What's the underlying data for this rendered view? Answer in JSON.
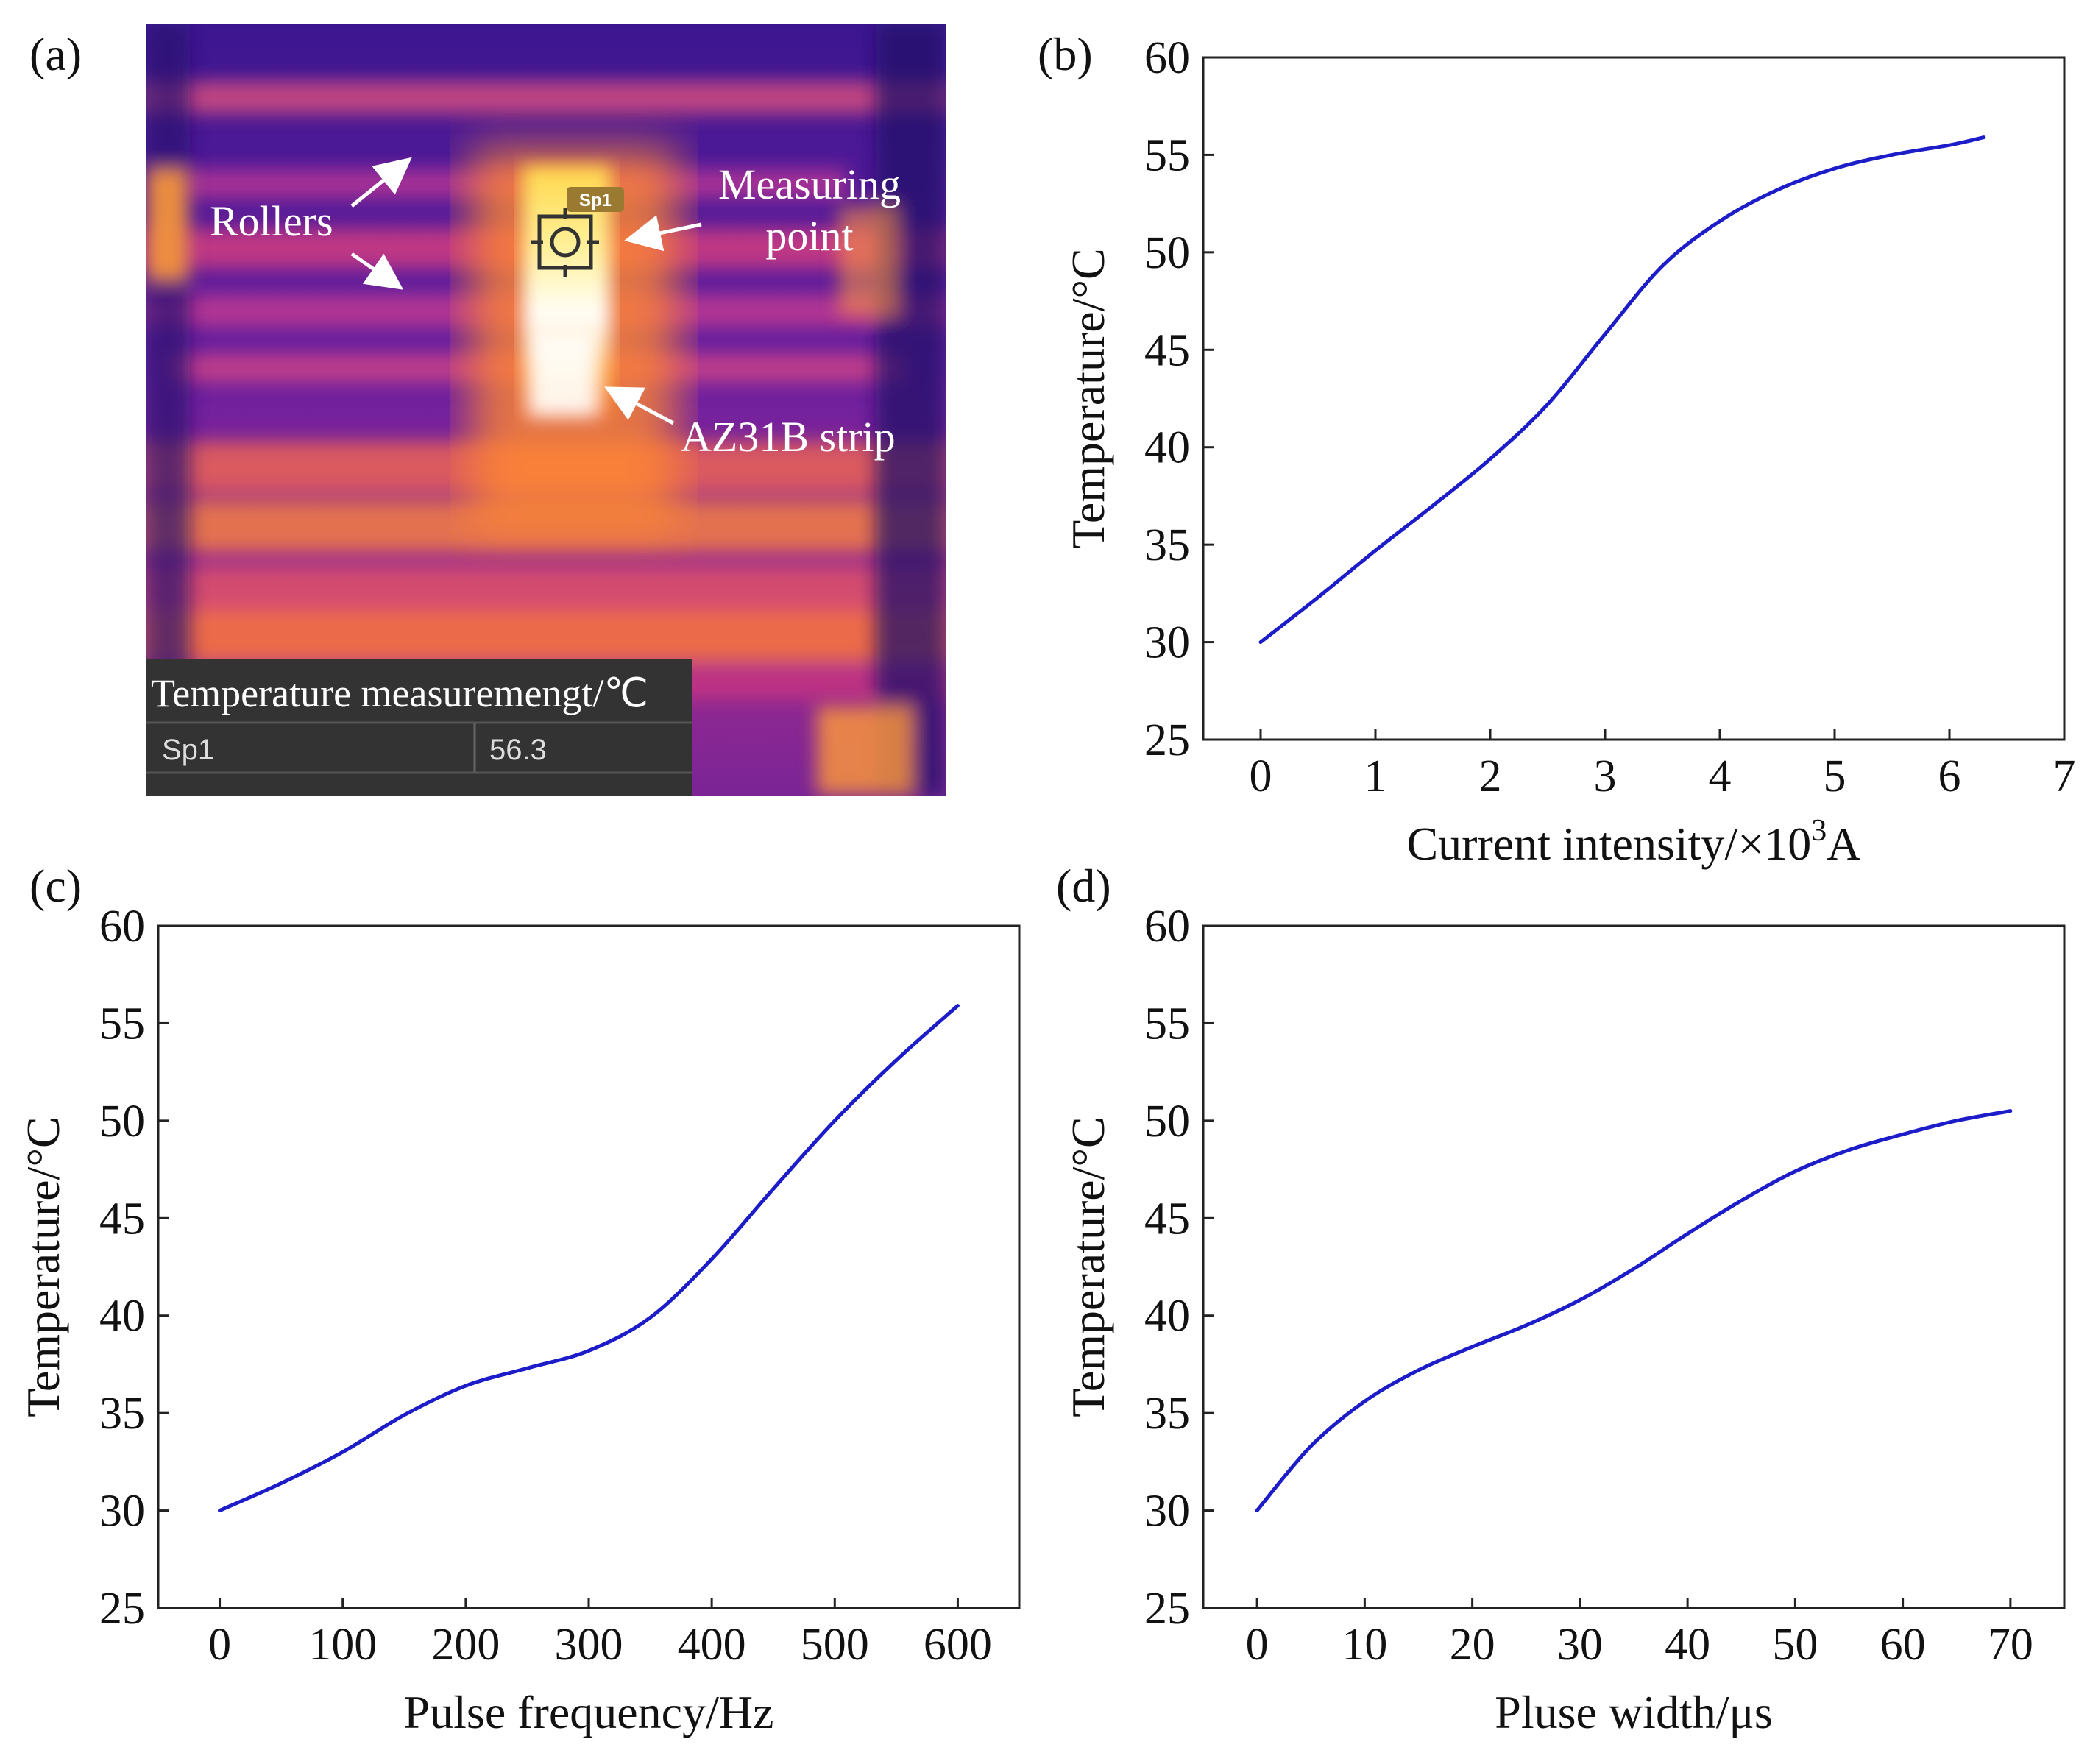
{
  "thermal": {
    "label": "(a)",
    "annotations": {
      "rollers": "Rollers",
      "measuring_line1": "Measuring",
      "measuring_line2": "point",
      "strip": "AZ31B strip"
    },
    "sp_tag": "Sp1",
    "table": {
      "title": "Temperature measuremengt/℃",
      "row_name": "Sp1",
      "row_value": "56.3"
    }
  },
  "chart_data": [
    {
      "id": "b",
      "label": "(b)",
      "type": "line",
      "xlabel": "Current intensity/×10",
      "xlabel_sup": "3",
      "xlabel_suffix": "A",
      "ylabel": "Temperature/°C",
      "xlim": [
        -0.5,
        7
      ],
      "ylim": [
        25,
        60
      ],
      "xticks": [
        0,
        1,
        2,
        3,
        4,
        5,
        6,
        7
      ],
      "yticks": [
        25,
        30,
        35,
        40,
        45,
        50,
        55,
        60
      ],
      "line_color": "#1c1cc8",
      "series": [
        {
          "name": "Temperature",
          "x": [
            0,
            0.5,
            1,
            1.5,
            2,
            2.5,
            3,
            3.5,
            4,
            4.5,
            5,
            5.5,
            6,
            6.3
          ],
          "y": [
            30,
            32.3,
            34.7,
            37,
            39.4,
            42.2,
            45.8,
            49.3,
            51.6,
            53.2,
            54.3,
            55,
            55.5,
            55.9
          ]
        }
      ]
    },
    {
      "id": "c",
      "label": "(c)",
      "type": "line",
      "xlabel": "Pulse frequency/Hz",
      "xlabel_sup": "",
      "xlabel_suffix": "",
      "ylabel": "Temperature/°C",
      "xlim": [
        -50,
        650
      ],
      "ylim": [
        25,
        60
      ],
      "xticks": [
        0,
        100,
        200,
        300,
        400,
        500,
        600
      ],
      "yticks": [
        25,
        30,
        35,
        40,
        45,
        50,
        55,
        60
      ],
      "line_color": "#1c1cc8",
      "series": [
        {
          "name": "Temperature",
          "x": [
            0,
            50,
            100,
            150,
            200,
            250,
            300,
            350,
            400,
            450,
            500,
            550,
            600
          ],
          "y": [
            30,
            31.4,
            33,
            34.9,
            36.4,
            37.3,
            38.2,
            39.9,
            42.9,
            46.5,
            50,
            53.1,
            55.9
          ]
        }
      ]
    },
    {
      "id": "d",
      "label": "(d)",
      "type": "line",
      "xlabel": "Pluse width/μs",
      "xlabel_sup": "",
      "xlabel_suffix": "",
      "ylabel": "Temperature/°C",
      "xlim": [
        -5,
        75
      ],
      "ylim": [
        25,
        60
      ],
      "xticks": [
        0,
        10,
        20,
        30,
        40,
        50,
        60,
        70
      ],
      "yticks": [
        25,
        30,
        35,
        40,
        45,
        50,
        55,
        60
      ],
      "line_color": "#1c1cc8",
      "series": [
        {
          "name": "Temperature",
          "x": [
            0,
            5,
            10,
            15,
            20,
            25,
            30,
            35,
            40,
            45,
            50,
            55,
            60,
            65,
            70
          ],
          "y": [
            30,
            33.3,
            35.6,
            37.2,
            38.4,
            39.5,
            40.8,
            42.4,
            44.2,
            45.9,
            47.4,
            48.5,
            49.3,
            50,
            50.5
          ]
        }
      ]
    }
  ]
}
